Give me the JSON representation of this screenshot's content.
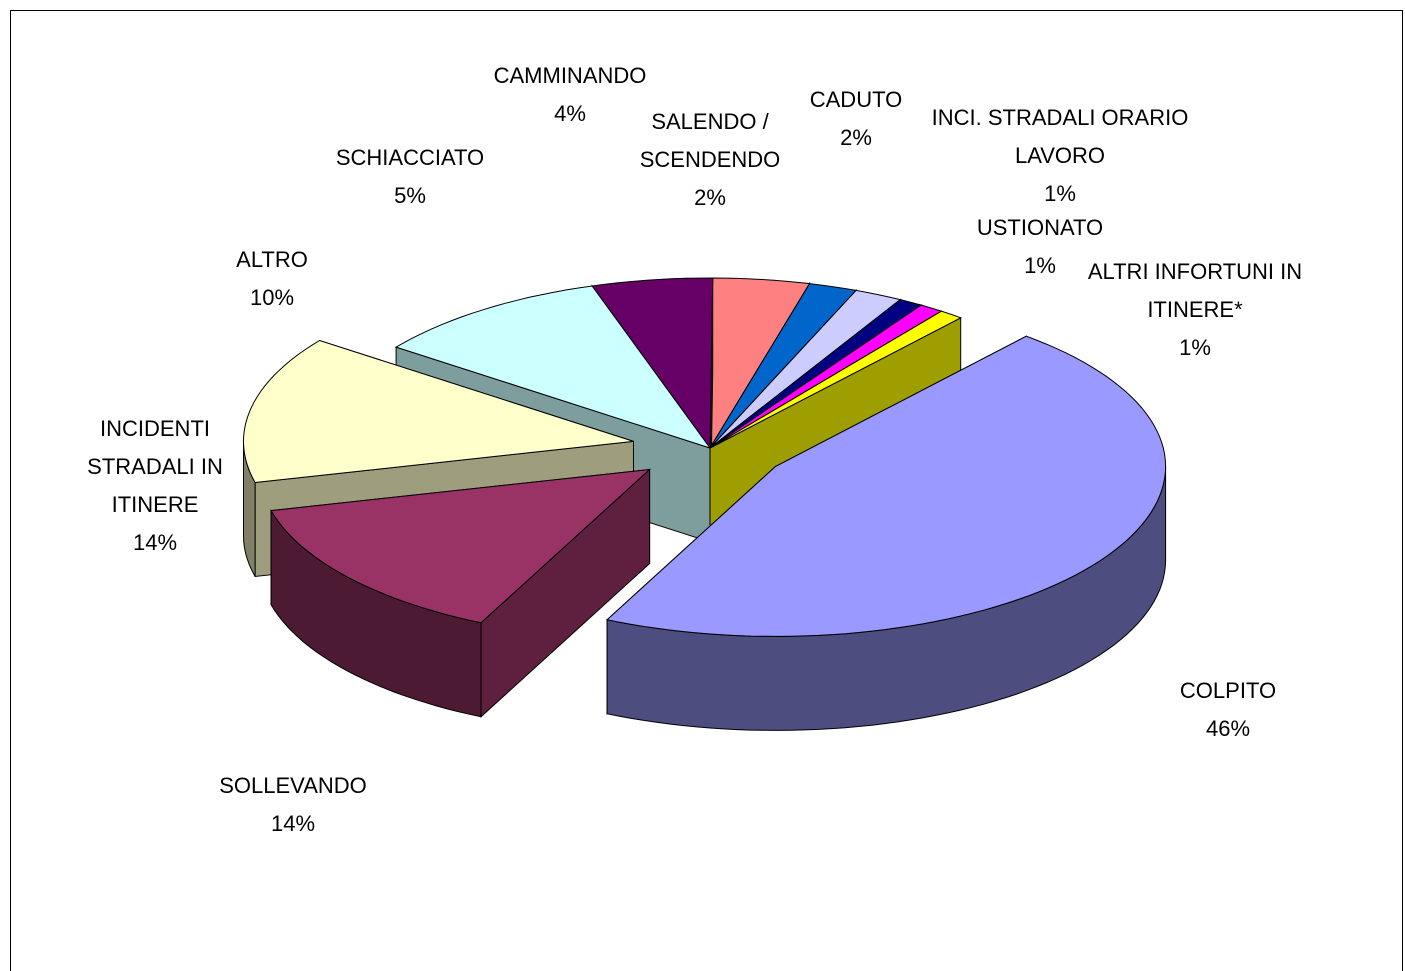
{
  "chart_data": {
    "type": "pie3d",
    "categories": [
      "COLPITO",
      "SOLLEVANDO",
      "INCIDENTI STRADALI IN ITINERE",
      "ALTRO",
      "SCHIACCIATO",
      "CAMMINANDO",
      "SALENDO / SCENDENDO",
      "CADUTO",
      "INCI. STRADALI ORARIO LAVORO",
      "USTIONATO",
      "ALTRI INFORTUNI IN ITINERE*"
    ],
    "values": [
      46,
      14,
      14,
      10,
      5,
      4,
      2,
      2,
      1,
      1,
      1
    ],
    "value_labels": [
      "46%",
      "14%",
      "14%",
      "10%",
      "5%",
      "4%",
      "2%",
      "2%",
      "1%",
      "1%",
      "1%"
    ],
    "colors": [
      "#9999ff",
      "#993366",
      "#ffffcc",
      "#ccffff",
      "#660066",
      "#ff8080",
      "#0066cc",
      "#ccccff",
      "#000080",
      "#ff00ff",
      "#ffff00"
    ],
    "exploded": [
      true,
      true,
      true,
      false,
      false,
      false,
      false,
      false,
      false,
      false,
      false
    ]
  }
}
